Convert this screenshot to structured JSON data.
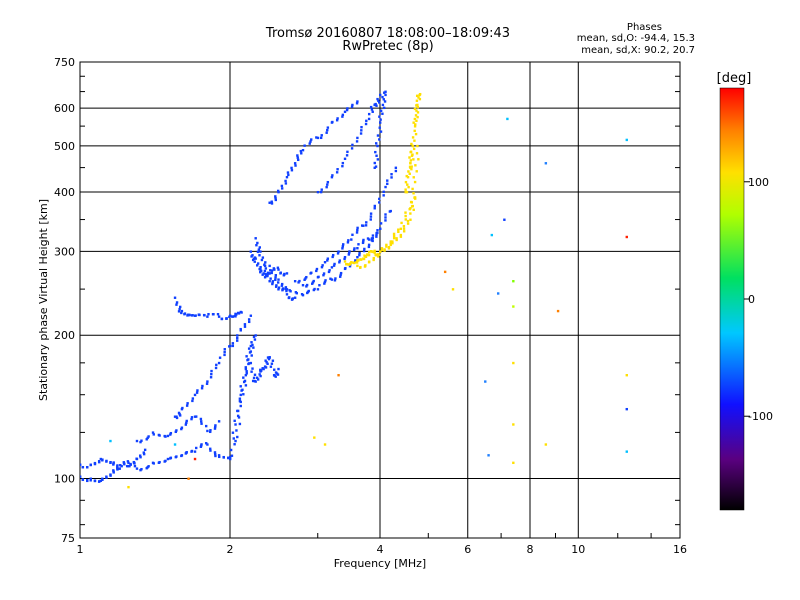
{
  "title_line1": "Tromsø 20160807 18:08:00–18:09:43",
  "title_line2": "RwPretec (8p)",
  "phases": {
    "title": "Phases",
    "o_line": "mean, sd,O: -94.4, 15.3",
    "x_line": "mean, sd,X:  90.2, 20.7"
  },
  "colorbar": {
    "label": "[deg]",
    "ticks": [
      {
        "label": "100",
        "value": 100
      },
      {
        "label": "0",
        "value": 0
      },
      {
        "label": "-100",
        "value": -100
      }
    ],
    "range": [
      -180,
      180
    ]
  },
  "chart_data": {
    "type": "scatter",
    "xlabel": "Frequency [MHz]",
    "ylabel": "Stationary phase Virtual Height [km]",
    "x_scale": "log",
    "y_scale": "log",
    "xlim": [
      1,
      16
    ],
    "ylim": [
      75,
      750
    ],
    "x_ticks": [
      {
        "label": "1",
        "value": 1
      },
      {
        "label": "2",
        "value": 2
      },
      {
        "label": "4",
        "value": 4
      },
      {
        "label": "6",
        "value": 6
      },
      {
        "label": "8",
        "value": 8
      },
      {
        "label": "10",
        "value": 10
      },
      {
        "label": "16",
        "value": 16
      }
    ],
    "y_ticks": [
      {
        "label": "750",
        "value": 750
      },
      {
        "label": "600",
        "value": 600
      },
      {
        "label": "500",
        "value": 500
      },
      {
        "label": "400",
        "value": 400
      },
      {
        "label": "300",
        "value": 300
      },
      {
        "label": "200",
        "value": 200
      },
      {
        "label": "100",
        "value": 100
      },
      {
        "label": "75",
        "value": 75
      }
    ],
    "grid": true,
    "series": [
      {
        "color": "#1040ff",
        "traces": [
          {
            "x": [
              1.0,
              1.05,
              1.1,
              1.15,
              1.2,
              1.3,
              1.4,
              1.5,
              1.6,
              1.7,
              1.8,
              1.9,
              2.0
            ],
            "y": [
              107,
              107,
              110,
              108,
              105,
              105,
              108,
              110,
              112,
              114,
              118,
              112,
              111
            ]
          },
          {
            "x": [
              1.0,
              1.05,
              1.1,
              1.15,
              1.2,
              1.25,
              1.3,
              1.35
            ],
            "y": [
              101,
              100,
              99,
              102,
              105,
              108,
              110,
              115
            ]
          },
          {
            "x": [
              1.3,
              1.4,
              1.5,
              1.6,
              1.7,
              1.8,
              1.9
            ],
            "y": [
              120,
              125,
              123,
              128,
              135,
              126,
              132
            ]
          },
          {
            "x": [
              1.55,
              1.6,
              1.7,
              1.8,
              1.9,
              2.0,
              2.1,
              2.2
            ],
            "y": [
              135,
              140,
              150,
              160,
              175,
              190,
              205,
              220
            ]
          },
          {
            "x": [
              1.55,
              1.6,
              1.65,
              1.7,
              1.8,
              1.9,
              2.0,
              2.05,
              2.1
            ],
            "y": [
              240,
              225,
              221,
              220,
              219,
              219,
              220,
              221,
              224
            ]
          },
          {
            "x": [
              2.0,
              2.05,
              2.1,
              2.15,
              2.2
            ],
            "y": [
              110,
              130,
              150,
              170,
              190
            ]
          },
          {
            "x": [
              2.05,
              2.1,
              2.15,
              2.2,
              2.25
            ],
            "y": [
              120,
              145,
              165,
              185,
              200
            ]
          },
          {
            "x": [
              2.2,
              2.25,
              2.3,
              2.35,
              2.4,
              2.45,
              2.5
            ],
            "y": [
              175,
              160,
              168,
              172,
              180,
              165,
              170
            ]
          },
          {
            "x": [
              2.2,
              2.25,
              2.3,
              2.35,
              2.4,
              2.5,
              2.6
            ],
            "y": [
              300,
              290,
              275,
              265,
              270,
              275,
              270
            ]
          },
          {
            "x": [
              2.25,
              2.3,
              2.35,
              2.4,
              2.5,
              2.6,
              2.7
            ],
            "y": [
              320,
              300,
              280,
              260,
              250,
              244,
              240
            ]
          },
          {
            "x": [
              2.4,
              2.5,
              2.6,
              2.8,
              3.0,
              3.2,
              3.4,
              3.6,
              3.8,
              4.0,
              4.2
            ],
            "y": [
              280,
              262,
              250,
              243,
              250,
              262,
              276,
              292,
              310,
              335,
              365
            ]
          },
          {
            "x": [
              2.7,
              2.9,
              3.1,
              3.3,
              3.5,
              3.7,
              3.9,
              4.1,
              4.3
            ],
            "y": [
              260,
              270,
              285,
              300,
              318,
              340,
              370,
              410,
              450
            ]
          },
          {
            "x": [
              2.4,
              2.5,
              2.6,
              2.7,
              2.8,
              3.0,
              3.2,
              3.4,
              3.6
            ],
            "y": [
              380,
              400,
              430,
              460,
              490,
              520,
              560,
              590,
              620
            ]
          },
          {
            "x": [
              3.0,
              3.2,
              3.4,
              3.6,
              3.8,
              3.9,
              4.0
            ],
            "y": [
              400,
              430,
              470,
              520,
              570,
              610,
              640
            ]
          },
          {
            "x": [
              3.9,
              3.95,
              4.0,
              4.05,
              4.1
            ],
            "y": [
              450,
              500,
              560,
              610,
              650
            ]
          },
          {
            "x": [
              2.8,
              3.0,
              3.2,
              3.4,
              3.6,
              3.8,
              4.0
            ],
            "y": [
              255,
              265,
              278,
              292,
              305,
              318,
              335
            ]
          }
        ]
      },
      {
        "color": "#ffe000",
        "traces": [
          {
            "x": [
              3.4,
              3.5,
              3.6,
              3.7,
              3.8,
              3.9,
              4.0,
              4.2,
              4.4,
              4.6,
              4.7
            ],
            "y": [
              286,
              285,
              287,
              290,
              295,
              298,
              300,
              310,
              325,
              350,
              390
            ]
          },
          {
            "x": [
              3.6,
              3.8,
              4.0,
              4.2,
              4.4,
              4.6,
              4.7,
              4.75
            ],
            "y": [
              280,
              285,
              300,
              315,
              335,
              370,
              420,
              500
            ]
          },
          {
            "x": [
              4.6,
              4.65,
              4.7,
              4.72,
              4.75,
              4.8
            ],
            "y": [
              450,
              500,
              550,
              580,
              610,
              640
            ]
          },
          {
            "x": [
              4.5,
              4.55,
              4.6,
              4.65
            ],
            "y": [
              400,
              430,
              460,
              500
            ]
          }
        ]
      }
    ],
    "scattered_points": [
      {
        "x": 5.4,
        "y": 272,
        "color": "#ff8000"
      },
      {
        "x": 6.6,
        "y": 112,
        "color": "#2080ff"
      },
      {
        "x": 6.7,
        "y": 325,
        "color": "#00c0ff"
      },
      {
        "x": 6.9,
        "y": 245,
        "color": "#2080ff"
      },
      {
        "x": 7.1,
        "y": 350,
        "color": "#1040ff"
      },
      {
        "x": 7.2,
        "y": 570,
        "color": "#00c0ff"
      },
      {
        "x": 7.4,
        "y": 260,
        "color": "#80ff00"
      },
      {
        "x": 7.4,
        "y": 230,
        "color": "#c0ff00"
      },
      {
        "x": 7.4,
        "y": 175,
        "color": "#ffe000"
      },
      {
        "x": 7.4,
        "y": 130,
        "color": "#ffe000"
      },
      {
        "x": 7.4,
        "y": 108,
        "color": "#ffe000"
      },
      {
        "x": 8.6,
        "y": 460,
        "color": "#2080ff"
      },
      {
        "x": 8.6,
        "y": 118,
        "color": "#ffe000"
      },
      {
        "x": 9.1,
        "y": 225,
        "color": "#ff8000"
      },
      {
        "x": 12.5,
        "y": 515,
        "color": "#00c0ff"
      },
      {
        "x": 12.5,
        "y": 322,
        "color": "#ff2000"
      },
      {
        "x": 12.5,
        "y": 165,
        "color": "#ffe000"
      },
      {
        "x": 12.5,
        "y": 140,
        "color": "#1040ff"
      },
      {
        "x": 12.5,
        "y": 114,
        "color": "#00c0ff"
      },
      {
        "x": 6.5,
        "y": 160,
        "color": "#2080ff"
      },
      {
        "x": 5.6,
        "y": 250,
        "color": "#ffe000"
      },
      {
        "x": 3.1,
        "y": 118,
        "color": "#ffe000"
      },
      {
        "x": 2.95,
        "y": 122,
        "color": "#ffe000"
      },
      {
        "x": 3.3,
        "y": 165,
        "color": "#ff8000"
      },
      {
        "x": 1.25,
        "y": 96,
        "color": "#ffe000"
      },
      {
        "x": 1.65,
        "y": 100,
        "color": "#ff8000"
      },
      {
        "x": 1.7,
        "y": 110,
        "color": "#ff2000"
      },
      {
        "x": 1.15,
        "y": 120,
        "color": "#00c0ff"
      },
      {
        "x": 1.55,
        "y": 118,
        "color": "#00c0ff"
      }
    ]
  }
}
